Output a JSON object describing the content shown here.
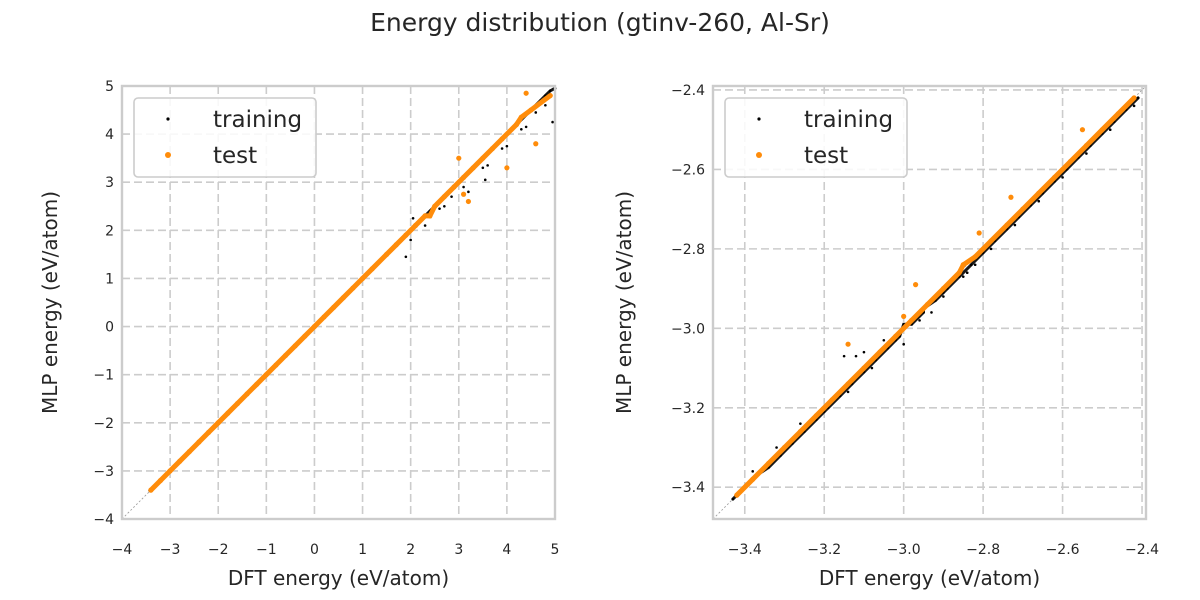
{
  "figure_title": "Energy distribution (gtinv-260, Al-Sr)",
  "colors": {
    "training": "#000000",
    "test": "#ff8c0a",
    "grid": "#cccccc",
    "frame": "#cccccc",
    "diagonal": "#999999"
  },
  "chart_data": [
    {
      "type": "scatter",
      "title": "",
      "xlabel": "DFT energy (eV/atom)",
      "ylabel": "MLP energy (eV/atom)",
      "xlim": [
        -4,
        5
      ],
      "ylim": [
        -4,
        5
      ],
      "xticks": [
        -4,
        -3,
        -2,
        -1,
        0,
        1,
        2,
        3,
        4,
        5
      ],
      "yticks": [
        -4,
        -3,
        -2,
        -1,
        0,
        1,
        2,
        3,
        4,
        5
      ],
      "xtick_labels": [
        "−4",
        "−3",
        "−2",
        "−1",
        "0",
        "1",
        "2",
        "3",
        "4",
        "5"
      ],
      "ytick_labels": [
        "−4",
        "−3",
        "−2",
        "−1",
        "0",
        "1",
        "2",
        "3",
        "4",
        "5"
      ],
      "grid": true,
      "legend_position": "top-left",
      "series": [
        {
          "name": "training",
          "x": [
            -3.42,
            -3.3,
            -3.2,
            -3.1,
            -3.0,
            -2.9,
            -2.8,
            -2.7,
            -2.6,
            -2.5,
            -2.4,
            -2.3,
            -2.2,
            -2.1,
            -2.0,
            -1.9,
            -1.8,
            -1.7,
            -1.6,
            -1.5,
            -1.4,
            -1.3,
            -1.2,
            -1.1,
            -1.0,
            -0.9,
            -0.8,
            -0.7,
            -0.6,
            -0.5,
            -0.4,
            -0.3,
            -0.2,
            -0.1,
            0.0,
            0.1,
            0.2,
            0.3,
            0.4,
            0.5,
            0.6,
            0.7,
            0.8,
            0.9,
            1.0,
            1.1,
            1.2,
            1.3,
            1.4,
            1.5,
            1.6,
            1.7,
            1.8,
            1.9,
            2.0,
            2.1,
            2.2,
            2.3,
            2.4,
            2.5,
            2.6,
            2.7,
            2.8,
            2.9,
            3.0,
            3.1,
            3.2,
            3.3,
            3.4,
            3.5,
            3.6,
            3.7,
            3.8,
            3.9,
            4.0,
            4.1,
            4.2,
            4.3,
            4.4,
            4.5,
            4.6,
            4.7,
            4.8,
            4.9,
            5.0,
            2.6,
            2.85,
            3.1,
            3.5,
            3.9,
            4.3,
            4.6,
            4.8,
            2.0,
            2.3,
            1.9,
            2.7,
            3.2,
            3.6,
            4.0,
            4.4,
            4.95,
            2.05,
            3.55
          ],
          "y": [
            -3.41,
            -3.31,
            -3.2,
            -3.1,
            -3.01,
            -2.9,
            -2.8,
            -2.7,
            -2.6,
            -2.5,
            -2.4,
            -2.3,
            -2.2,
            -2.1,
            -2.0,
            -1.9,
            -1.8,
            -1.7,
            -1.6,
            -1.5,
            -1.4,
            -1.3,
            -1.2,
            -1.1,
            -1.0,
            -0.9,
            -0.8,
            -0.7,
            -0.6,
            -0.5,
            -0.4,
            -0.3,
            -0.2,
            -0.1,
            0.0,
            0.1,
            0.2,
            0.3,
            0.4,
            0.5,
            0.6,
            0.7,
            0.8,
            0.9,
            1.0,
            1.1,
            1.2,
            1.3,
            1.4,
            1.5,
            1.6,
            1.7,
            1.8,
            1.9,
            2.0,
            2.1,
            2.2,
            2.3,
            2.4,
            2.5,
            2.6,
            2.7,
            2.8,
            2.9,
            3.0,
            3.1,
            3.2,
            3.3,
            3.4,
            3.5,
            3.6,
            3.7,
            3.8,
            3.9,
            4.0,
            4.1,
            4.2,
            4.3,
            4.4,
            4.5,
            4.6,
            4.7,
            4.8,
            4.9,
            4.95,
            2.45,
            2.7,
            2.9,
            3.3,
            3.7,
            4.1,
            4.45,
            4.6,
            1.8,
            2.1,
            1.45,
            2.5,
            2.8,
            3.35,
            3.75,
            4.15,
            4.25,
            2.25,
            3.05
          ]
        },
        {
          "name": "test",
          "x": [
            -3.4,
            -3.2,
            -3.0,
            -2.8,
            -2.6,
            -2.4,
            -2.2,
            -2.0,
            -1.8,
            -1.6,
            -1.4,
            -1.2,
            -1.0,
            -0.8,
            -0.6,
            -0.4,
            -0.2,
            0.0,
            0.2,
            0.4,
            0.6,
            0.8,
            1.0,
            1.2,
            1.5,
            1.7,
            1.9,
            2.1,
            2.3,
            2.5,
            2.7,
            2.9,
            3.1,
            3.3,
            3.5,
            3.7,
            3.9,
            4.2,
            4.5,
            4.9,
            3.0,
            3.2,
            4.0,
            4.4,
            4.6,
            2.4,
            3.1,
            4.3
          ],
          "y": [
            -3.4,
            -3.2,
            -3.0,
            -2.8,
            -2.6,
            -2.4,
            -2.2,
            -2.0,
            -1.8,
            -1.6,
            -1.4,
            -1.2,
            -1.0,
            -0.8,
            -0.6,
            -0.4,
            -0.2,
            0.0,
            0.2,
            0.4,
            0.6,
            0.8,
            1.0,
            1.2,
            1.5,
            1.7,
            1.9,
            2.1,
            2.3,
            2.5,
            2.7,
            2.9,
            3.1,
            3.3,
            3.5,
            3.7,
            3.9,
            4.2,
            4.5,
            4.8,
            3.5,
            2.6,
            3.3,
            4.85,
            3.8,
            2.3,
            2.75,
            4.35
          ]
        }
      ]
    },
    {
      "type": "scatter",
      "title": "",
      "xlabel": "DFT energy (eV/atom)",
      "ylabel": "MLP energy (eV/atom)",
      "xlim": [
        -3.48,
        -2.39
      ],
      "ylim": [
        -3.48,
        -2.39
      ],
      "xticks": [
        -3.4,
        -3.2,
        -3.0,
        -2.8,
        -2.6,
        -2.4
      ],
      "yticks": [
        -3.4,
        -3.2,
        -3.0,
        -2.8,
        -2.6,
        -2.4
      ],
      "xtick_labels": [
        "−3.4",
        "−3.2",
        "−3.0",
        "−2.8",
        "−2.6",
        "−2.4"
      ],
      "ytick_labels": [
        "−3.4",
        "−3.2",
        "−3.0",
        "−2.8",
        "−2.6",
        "−2.4"
      ],
      "grid": true,
      "legend_position": "top-left",
      "series": [
        {
          "name": "training",
          "x": [
            -3.43,
            -3.4,
            -3.37,
            -3.34,
            -3.31,
            -3.28,
            -3.25,
            -3.22,
            -3.19,
            -3.16,
            -3.13,
            -3.1,
            -3.07,
            -3.04,
            -3.01,
            -2.98,
            -2.95,
            -2.92,
            -2.89,
            -2.86,
            -2.83,
            -2.8,
            -2.77,
            -2.74,
            -2.71,
            -2.68,
            -2.65,
            -2.62,
            -2.59,
            -2.56,
            -2.53,
            -2.5,
            -2.47,
            -2.44,
            -2.41,
            -3.38,
            -3.32,
            -3.26,
            -3.2,
            -3.14,
            -3.08,
            -3.02,
            -2.96,
            -2.9,
            -2.84,
            -2.78,
            -2.72,
            -2.66,
            -2.6,
            -2.54,
            -2.48,
            -2.42,
            -3.15,
            -3.12,
            -3.1,
            -3.05,
            -3.0,
            -2.95,
            -2.9,
            -2.85,
            -3.0,
            -2.93,
            -2.82
          ],
          "y": [
            -3.43,
            -3.4,
            -3.37,
            -3.35,
            -3.32,
            -3.29,
            -3.26,
            -3.23,
            -3.2,
            -3.17,
            -3.14,
            -3.11,
            -3.08,
            -3.05,
            -3.02,
            -2.99,
            -2.96,
            -2.93,
            -2.9,
            -2.87,
            -2.84,
            -2.81,
            -2.78,
            -2.75,
            -2.72,
            -2.69,
            -2.66,
            -2.63,
            -2.6,
            -2.57,
            -2.54,
            -2.51,
            -2.48,
            -2.45,
            -2.42,
            -3.36,
            -3.3,
            -3.24,
            -3.21,
            -3.16,
            -3.1,
            -3.03,
            -2.98,
            -2.92,
            -2.86,
            -2.8,
            -2.74,
            -2.68,
            -2.62,
            -2.56,
            -2.5,
            -2.44,
            -3.07,
            -3.07,
            -3.06,
            -3.03,
            -2.99,
            -2.95,
            -2.91,
            -2.87,
            -3.04,
            -2.96,
            -2.84
          ]
        },
        {
          "name": "test",
          "x": [
            -3.42,
            -3.38,
            -3.34,
            -3.3,
            -3.26,
            -3.22,
            -3.18,
            -3.14,
            -3.1,
            -3.06,
            -3.02,
            -2.98,
            -2.94,
            -2.9,
            -2.86,
            -2.82,
            -2.78,
            -2.74,
            -2.7,
            -2.66,
            -2.62,
            -2.58,
            -2.54,
            -2.5,
            -2.46,
            -2.42,
            -3.0,
            -2.85,
            -2.73,
            -2.55,
            -3.14,
            -2.97,
            -2.81
          ],
          "y": [
            -3.42,
            -3.38,
            -3.34,
            -3.3,
            -3.26,
            -3.22,
            -3.18,
            -3.14,
            -3.1,
            -3.06,
            -3.02,
            -2.98,
            -2.94,
            -2.9,
            -2.86,
            -2.82,
            -2.78,
            -2.74,
            -2.7,
            -2.66,
            -2.62,
            -2.58,
            -2.54,
            -2.5,
            -2.46,
            -2.42,
            -2.97,
            -2.84,
            -2.67,
            -2.5,
            -3.04,
            -2.89,
            -2.76
          ]
        }
      ]
    }
  ]
}
